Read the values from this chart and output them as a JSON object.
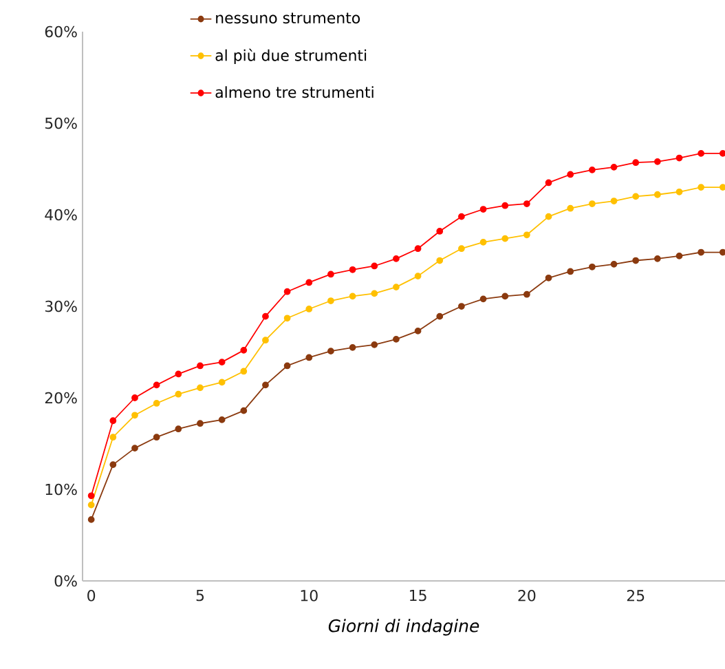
{
  "chart_data": {
    "type": "line",
    "xlabel": "*Giorni di indagine*",
    "x": [
      0,
      1,
      2,
      3,
      4,
      5,
      6,
      7,
      8,
      9,
      10,
      11,
      12,
      13,
      14,
      15,
      16,
      17,
      18,
      19,
      20,
      21,
      22,
      23,
      24,
      25,
      26,
      27,
      28,
      29
    ],
    "xlim": [
      -0.4,
      29.1
    ],
    "xticks": [
      0,
      5,
      10,
      15,
      20,
      25
    ],
    "ylim": [
      0,
      60
    ],
    "yticks": [
      {
        "value": 0,
        "label": "0%"
      },
      {
        "value": 10,
        "label": "10%"
      },
      {
        "value": 20,
        "label": "20%"
      },
      {
        "value": 30,
        "label": "30%"
      },
      {
        "value": 40,
        "label": "40%"
      },
      {
        "value": 50,
        "label": "50%"
      },
      {
        "value": 60,
        "label": "60%"
      }
    ],
    "grid": false,
    "legend": "top",
    "marker": "circle",
    "line_style": "solid",
    "series": [
      {
        "name": "nessuno strumento",
        "color": "#8b3a0f",
        "values": [
          6.7,
          12.7,
          14.5,
          15.7,
          16.6,
          17.2,
          17.6,
          18.6,
          21.4,
          23.5,
          24.4,
          25.1,
          25.5,
          25.8,
          26.4,
          27.3,
          28.9,
          30.0,
          30.8,
          31.1,
          31.3,
          33.1,
          33.8,
          34.3,
          34.6,
          35.0,
          35.2,
          35.5,
          35.9,
          35.9
        ]
      },
      {
        "name": "al più due strumenti",
        "color": "#ffc000",
        "values": [
          8.3,
          15.7,
          18.1,
          19.4,
          20.4,
          21.1,
          21.7,
          22.9,
          26.3,
          28.7,
          29.7,
          30.6,
          31.1,
          31.4,
          32.1,
          33.3,
          35.0,
          36.3,
          37.0,
          37.4,
          37.8,
          39.8,
          40.7,
          41.2,
          41.5,
          42.0,
          42.2,
          42.5,
          43.0,
          43.0
        ]
      },
      {
        "name": "almeno tre strumenti",
        "color": "#ff0000",
        "values": [
          9.3,
          17.5,
          20.0,
          21.4,
          22.6,
          23.5,
          23.9,
          25.2,
          28.9,
          31.6,
          32.6,
          33.5,
          34.0,
          34.4,
          35.2,
          36.3,
          38.2,
          39.8,
          40.6,
          41.0,
          41.2,
          43.5,
          44.4,
          44.9,
          45.2,
          45.7,
          45.8,
          46.2,
          46.7,
          46.7
        ]
      }
    ]
  }
}
